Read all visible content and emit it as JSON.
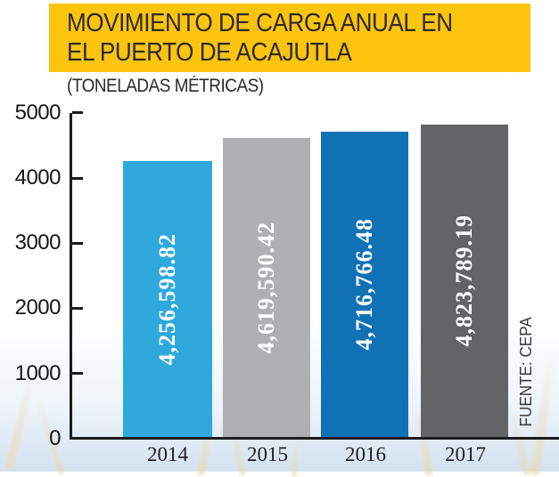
{
  "title": {
    "line1": "MOVIMIENTO DE CARGA ANUAL EN",
    "line2": "EL PUERTO DE ACAJUTLA",
    "subtitle": "(TONELADAS MÉTRICAS)",
    "highlight_color": "#FDC40D"
  },
  "source": "FUENTE: CEPA",
  "chart_data": {
    "type": "bar",
    "title": "MOVIMIENTO DE CARGA ANUAL EN EL PUERTO DE ACAJUTLA",
    "subtitle": "(TONELADAS MÉTRICAS)",
    "categories": [
      "2014",
      "2015",
      "2016",
      "2017"
    ],
    "values": [
      4256.59882,
      4619.59042,
      4716.76648,
      4823.78919
    ],
    "value_labels": [
      "4,256,598.82",
      "4,619,590.42",
      "4,716,766.48",
      "4,823,789.19"
    ],
    "bar_colors": [
      "#2FA9DC",
      "#AFB0B2",
      "#1171B5",
      "#636466"
    ],
    "yticks": [
      "5000",
      "4000",
      "3000",
      "2000",
      "1000",
      "0"
    ],
    "ylim": [
      0,
      5000
    ],
    "xlabel": "",
    "ylabel": "",
    "grid": "off",
    "legend": "none",
    "source": "FUENTE: CEPA"
  }
}
